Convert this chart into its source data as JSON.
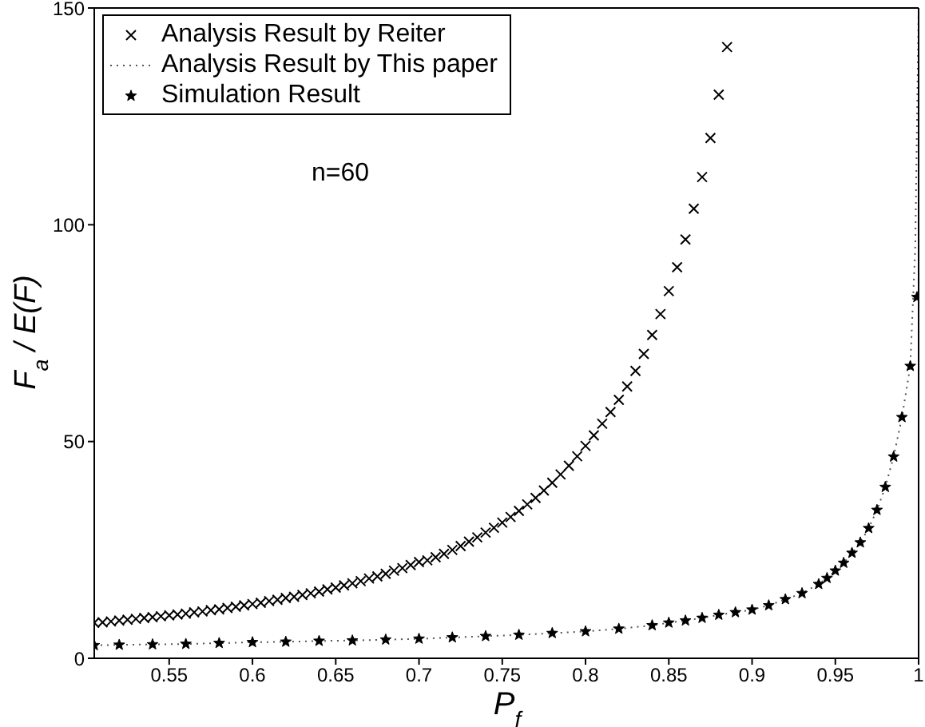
{
  "chart_data": {
    "type": "scatter",
    "xlabel": "P$_{f}$",
    "ylabel": "F$_{a}$ / E(F)",
    "annotations": [
      "n=60"
    ],
    "xlim": [
      0.505,
      1
    ],
    "ylim": [
      0,
      150
    ],
    "xticks": [
      0.55,
      0.6,
      0.65,
      0.7,
      0.75,
      0.8,
      0.85,
      0.9,
      0.95,
      1
    ],
    "yticks": [
      0,
      50,
      100,
      150
    ],
    "grid": false,
    "legend": "top left",
    "series": [
      {
        "name": "Analysis Result by Reiter",
        "marker": "cross",
        "color": "#000000",
        "x": [
          0.505,
          0.51,
          0.515,
          0.52,
          0.525,
          0.53,
          0.535,
          0.54,
          0.545,
          0.55,
          0.555,
          0.56,
          0.565,
          0.57,
          0.575,
          0.58,
          0.585,
          0.59,
          0.595,
          0.6,
          0.605,
          0.61,
          0.615,
          0.62,
          0.625,
          0.63,
          0.635,
          0.64,
          0.645,
          0.65,
          0.655,
          0.66,
          0.665,
          0.67,
          0.675,
          0.68,
          0.685,
          0.69,
          0.695,
          0.7,
          0.705,
          0.71,
          0.715,
          0.72,
          0.725,
          0.73,
          0.735,
          0.74,
          0.745,
          0.75,
          0.755,
          0.76,
          0.765,
          0.77,
          0.775,
          0.78,
          0.785,
          0.79,
          0.795,
          0.8,
          0.805,
          0.81,
          0.815,
          0.82,
          0.825,
          0.83,
          0.835,
          0.84,
          0.845,
          0.85,
          0.855,
          0.86,
          0.865,
          0.87,
          0.875,
          0.88,
          0.885
        ],
        "values": [
          8.2,
          8.3,
          8.5,
          8.7,
          8.9,
          9.1,
          9.3,
          9.5,
          9.7,
          9.9,
          10.1,
          10.3,
          10.6,
          10.8,
          11.1,
          11.3,
          11.6,
          11.9,
          12.2,
          12.5,
          12.8,
          13.2,
          13.5,
          13.9,
          14.2,
          14.6,
          15,
          15.4,
          15.9,
          16.3,
          16.8,
          17.3,
          17.8,
          18.4,
          18.9,
          19.5,
          20.2,
          20.8,
          21.5,
          22.2,
          22.6,
          23.3,
          24.1,
          25,
          25.9,
          26.9,
          27.9,
          29,
          30.1,
          31.3,
          32.6,
          34,
          35.5,
          37,
          38.7,
          40.5,
          42.4,
          44.4,
          46.6,
          49,
          51.4,
          54.1,
          56.8,
          59.6,
          62.7,
          66.3,
          70.2,
          74.6,
          79.4,
          84.7,
          90.2,
          96.6,
          103.7,
          111,
          120,
          130,
          141
        ]
      },
      {
        "name": "Analysis Result by This paper",
        "type": "line",
        "marker": "none",
        "line_style": "dotted",
        "color": "#555555",
        "x": [
          0.505,
          0.52,
          0.54,
          0.56,
          0.58,
          0.6,
          0.62,
          0.64,
          0.66,
          0.68,
          0.7,
          0.72,
          0.74,
          0.76,
          0.78,
          0.8,
          0.82,
          0.84,
          0.85,
          0.86,
          0.87,
          0.88,
          0.89,
          0.9,
          0.91,
          0.92,
          0.93,
          0.94,
          0.945,
          0.95,
          0.955,
          0.96,
          0.965,
          0.97,
          0.975,
          0.98,
          0.985,
          0.99,
          0.995,
          0.998,
          1
        ],
        "values": [
          3,
          3.1,
          3.2,
          3.3,
          3.5,
          3.7,
          3.8,
          4,
          4.1,
          4.3,
          4.5,
          4.8,
          5.1,
          5.4,
          5.8,
          6.2,
          6.8,
          7.6,
          8.2,
          8.7,
          9.3,
          10,
          10.6,
          11.2,
          12.2,
          13.6,
          15,
          17.1,
          18.5,
          20.2,
          22,
          24.3,
          26.7,
          30,
          34.2,
          39.5,
          46.5,
          55.6,
          67.4,
          95,
          150
        ]
      },
      {
        "name": "Simulation Result",
        "marker": "star",
        "color": "#000000",
        "x": [
          0.505,
          0.52,
          0.54,
          0.56,
          0.58,
          0.6,
          0.62,
          0.64,
          0.66,
          0.68,
          0.7,
          0.72,
          0.74,
          0.76,
          0.78,
          0.8,
          0.82,
          0.84,
          0.85,
          0.86,
          0.87,
          0.88,
          0.89,
          0.9,
          0.91,
          0.92,
          0.93,
          0.94,
          0.945,
          0.95,
          0.955,
          0.96,
          0.965,
          0.97,
          0.975,
          0.98,
          0.985,
          0.99,
          0.995,
          0.999
        ],
        "values": [
          3,
          3.1,
          3.2,
          3.3,
          3.5,
          3.7,
          3.8,
          4,
          4.1,
          4.3,
          4.5,
          4.8,
          5.1,
          5.4,
          5.8,
          6.2,
          6.8,
          7.6,
          8.2,
          8.7,
          9.3,
          10,
          10.6,
          11.2,
          12.2,
          13.6,
          15,
          17.1,
          18.5,
          20.2,
          22,
          24.3,
          26.7,
          30,
          34.2,
          39.5,
          46.5,
          55.6,
          67.4,
          83.3
        ]
      }
    ]
  }
}
